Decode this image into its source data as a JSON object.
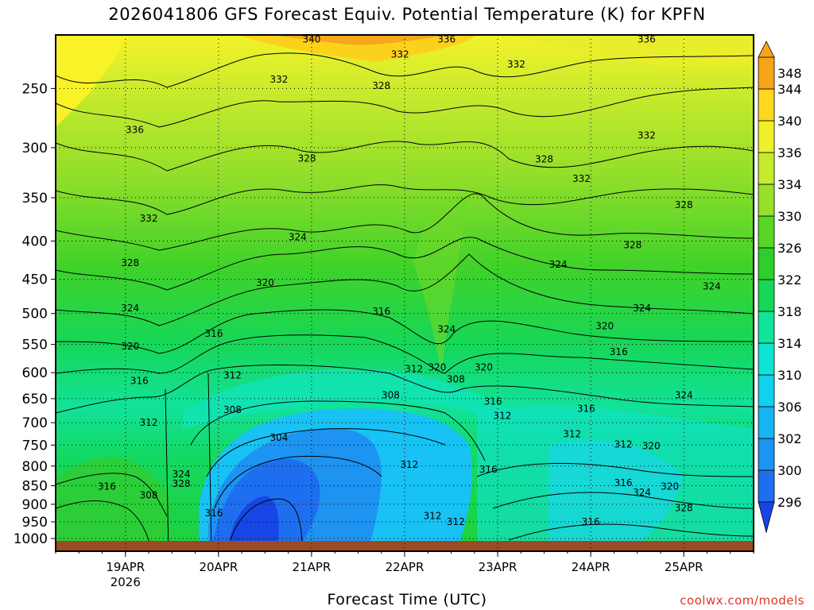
{
  "chart_data": {
    "type": "heatmap",
    "title": "2026041806 GFS Forecast Equiv. Potential Temperature (K) for KPFN",
    "xlabel": "Forecast Time (UTC)",
    "credit": "coolwx.com/models",
    "x_ticks": [
      "19APR",
      "20APR",
      "21APR",
      "22APR",
      "23APR",
      "24APR",
      "25APR"
    ],
    "x_year": "2026",
    "y_ticks": [
      250,
      300,
      350,
      400,
      450,
      500,
      550,
      600,
      650,
      700,
      750,
      800,
      850,
      900,
      950,
      1000
    ],
    "colorbar_levels": [
      296,
      300,
      302,
      306,
      310,
      314,
      318,
      322,
      326,
      330,
      334,
      336,
      340,
      344,
      348
    ],
    "colorbar_colors": [
      "#1646e6",
      "#1e6ff0",
      "#1d93f2",
      "#17b4f3",
      "#11d0f0",
      "#0fe4d4",
      "#10e39a",
      "#15d859",
      "#2ecf2a",
      "#59d624",
      "#98e02a",
      "#c6ea2c",
      "#eef02a",
      "#ffd71c",
      "#f7a418"
    ],
    "contour_labels": [
      {
        "value": "340",
        "x_day": 21.0,
        "p": 215
      },
      {
        "value": "336",
        "x_day": 22.45,
        "p": 215
      },
      {
        "value": "336",
        "x_day": 24.6,
        "p": 215
      },
      {
        "value": "332",
        "x_day": 21.95,
        "p": 225
      },
      {
        "value": "332",
        "x_day": 23.2,
        "p": 232
      },
      {
        "value": "332",
        "x_day": 20.65,
        "p": 243
      },
      {
        "value": "328",
        "x_day": 21.75,
        "p": 248
      },
      {
        "value": "336",
        "x_day": 19.1,
        "p": 284
      },
      {
        "value": "332",
        "x_day": 24.6,
        "p": 289
      },
      {
        "value": "328",
        "x_day": 20.95,
        "p": 310
      },
      {
        "value": "328",
        "x_day": 23.5,
        "p": 311
      },
      {
        "value": "332",
        "x_day": 23.9,
        "p": 330
      },
      {
        "value": "328",
        "x_day": 25.0,
        "p": 358
      },
      {
        "value": "332",
        "x_day": 19.25,
        "p": 373
      },
      {
        "value": "324",
        "x_day": 20.85,
        "p": 395
      },
      {
        "value": "328",
        "x_day": 24.45,
        "p": 405
      },
      {
        "value": "328",
        "x_day": 19.05,
        "p": 428
      },
      {
        "value": "324",
        "x_day": 23.65,
        "p": 430
      },
      {
        "value": "320",
        "x_day": 20.5,
        "p": 455
      },
      {
        "value": "324",
        "x_day": 25.3,
        "p": 460
      },
      {
        "value": "324",
        "x_day": 19.05,
        "p": 492
      },
      {
        "value": "324",
        "x_day": 24.55,
        "p": 492
      },
      {
        "value": "316",
        "x_day": 21.75,
        "p": 497
      },
      {
        "value": "320",
        "x_day": 24.15,
        "p": 520
      },
      {
        "value": "324",
        "x_day": 22.45,
        "p": 525
      },
      {
        "value": "316",
        "x_day": 19.95,
        "p": 532
      },
      {
        "value": "320",
        "x_day": 19.05,
        "p": 553
      },
      {
        "value": "316",
        "x_day": 24.3,
        "p": 563
      },
      {
        "value": "312",
        "x_day": 22.1,
        "p": 593
      },
      {
        "value": "320",
        "x_day": 22.35,
        "p": 590
      },
      {
        "value": "320",
        "x_day": 22.85,
        "p": 590
      },
      {
        "value": "312",
        "x_day": 20.15,
        "p": 605
      },
      {
        "value": "308",
        "x_day": 22.55,
        "p": 612
      },
      {
        "value": "316",
        "x_day": 19.15,
        "p": 615
      },
      {
        "value": "308",
        "x_day": 21.85,
        "p": 643
      },
      {
        "value": "324",
        "x_day": 25.0,
        "p": 643
      },
      {
        "value": "316",
        "x_day": 22.95,
        "p": 656
      },
      {
        "value": "316",
        "x_day": 23.95,
        "p": 670
      },
      {
        "value": "308",
        "x_day": 20.15,
        "p": 673
      },
      {
        "value": "312",
        "x_day": 23.05,
        "p": 685
      },
      {
        "value": "312",
        "x_day": 19.25,
        "p": 700
      },
      {
        "value": "312",
        "x_day": 23.8,
        "p": 725
      },
      {
        "value": "304",
        "x_day": 20.65,
        "p": 733
      },
      {
        "value": "312",
        "x_day": 24.35,
        "p": 748
      },
      {
        "value": "320",
        "x_day": 24.65,
        "p": 752
      },
      {
        "value": "312",
        "x_day": 22.05,
        "p": 797
      },
      {
        "value": "316",
        "x_day": 22.9,
        "p": 808
      },
      {
        "value": "324",
        "x_day": 19.6,
        "p": 820
      },
      {
        "value": "328",
        "x_day": 19.6,
        "p": 845
      },
      {
        "value": "316",
        "x_day": 24.35,
        "p": 843
      },
      {
        "value": "316",
        "x_day": 18.8,
        "p": 852
      },
      {
        "value": "320",
        "x_day": 24.85,
        "p": 852
      },
      {
        "value": "324",
        "x_day": 24.55,
        "p": 868
      },
      {
        "value": "308",
        "x_day": 19.25,
        "p": 875
      },
      {
        "value": "316",
        "x_day": 19.95,
        "p": 925
      },
      {
        "value": "328",
        "x_day": 25.0,
        "p": 910
      },
      {
        "value": "312",
        "x_day": 22.3,
        "p": 933
      },
      {
        "value": "312",
        "x_day": 22.55,
        "p": 950
      },
      {
        "value": "316",
        "x_day": 24.0,
        "p": 950
      }
    ]
  }
}
